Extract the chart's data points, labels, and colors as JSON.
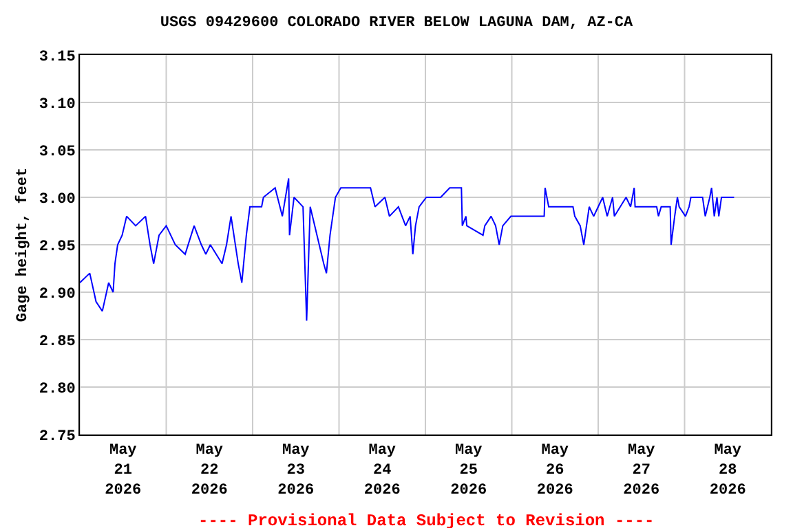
{
  "chart_data": {
    "type": "line",
    "title": "USGS 09429600 COLORADO RIVER BELOW LAGUNA DAM, AZ-CA",
    "ylabel": "Gage height, feet",
    "annotations": [
      "---- Provisional Data Subject to Revision ----"
    ],
    "x": [
      "2026-05-21T00:00",
      "2026-05-21T02:45",
      "2026-05-21T04:30",
      "2026-05-21T06:15",
      "2026-05-21T08:00",
      "2026-05-21T09:15",
      "2026-05-21T09:45",
      "2026-05-21T10:30",
      "2026-05-21T11:45",
      "2026-05-21T13:00",
      "2026-05-21T15:30",
      "2026-05-21T18:15",
      "2026-05-21T19:30",
      "2026-05-21T20:30",
      "2026-05-21T22:00",
      "2026-05-22T00:00",
      "2026-05-22T02:30",
      "2026-05-22T05:15",
      "2026-05-22T07:45",
      "2026-05-22T09:45",
      "2026-05-22T11:00",
      "2026-05-22T12:15",
      "2026-05-22T15:30",
      "2026-05-22T16:45",
      "2026-05-22T18:00",
      "2026-05-22T20:00",
      "2026-05-22T21:00",
      "2026-05-22T22:15",
      "2026-05-22T23:15",
      "2026-05-23T02:30",
      "2026-05-23T03:00",
      "2026-05-23T06:15",
      "2026-05-23T08:15",
      "2026-05-23T10:00",
      "2026-05-23T10:15",
      "2026-05-23T11:30",
      "2026-05-23T14:00",
      "2026-05-23T15:00",
      "2026-05-23T16:00",
      "2026-05-23T19:45",
      "2026-05-23T20:30",
      "2026-05-23T21:30",
      "2026-05-23T23:00",
      "2026-05-24T00:30",
      "2026-05-24T08:45",
      "2026-05-24T10:00",
      "2026-05-24T12:45",
      "2026-05-24T14:00",
      "2026-05-24T16:30",
      "2026-05-24T18:30",
      "2026-05-24T19:45",
      "2026-05-24T20:30",
      "2026-05-24T21:15",
      "2026-05-24T22:15",
      "2026-05-25T00:15",
      "2026-05-25T04:15",
      "2026-05-25T06:45",
      "2026-05-25T10:00",
      "2026-05-25T10:15",
      "2026-05-25T11:15",
      "2026-05-25T11:30",
      "2026-05-25T16:00",
      "2026-05-25T16:30",
      "2026-05-25T18:15",
      "2026-05-25T19:30",
      "2026-05-25T20:30",
      "2026-05-25T21:30",
      "2026-05-25T23:45",
      "2026-05-26T09:00",
      "2026-05-26T09:15",
      "2026-05-26T10:15",
      "2026-05-26T17:00",
      "2026-05-26T17:30",
      "2026-05-26T19:00",
      "2026-05-26T19:30",
      "2026-05-26T20:00",
      "2026-05-26T20:45",
      "2026-05-26T21:30",
      "2026-05-26T22:45",
      "2026-05-27T00:00",
      "2026-05-27T01:15",
      "2026-05-27T02:30",
      "2026-05-27T04:00",
      "2026-05-27T04:30",
      "2026-05-27T07:45",
      "2026-05-27T09:00",
      "2026-05-27T10:00",
      "2026-05-27T10:15",
      "2026-05-27T16:15",
      "2026-05-27T16:45",
      "2026-05-27T17:30",
      "2026-05-27T20:00",
      "2026-05-27T20:15",
      "2026-05-27T21:15",
      "2026-05-27T22:00",
      "2026-05-27T22:30",
      "2026-05-28T00:15",
      "2026-05-28T01:15",
      "2026-05-28T01:45",
      "2026-05-28T05:00",
      "2026-05-28T05:45",
      "2026-05-28T07:00",
      "2026-05-28T07:30",
      "2026-05-28T08:15",
      "2026-05-28T09:00",
      "2026-05-28T09:30",
      "2026-05-28T10:15",
      "2026-05-28T13:45"
    ],
    "series": [
      {
        "color": "#0000ff",
        "values": [
          2.91,
          2.92,
          2.89,
          2.88,
          2.91,
          2.9,
          2.93,
          2.95,
          2.96,
          2.98,
          2.97,
          2.98,
          2.95,
          2.93,
          2.96,
          2.97,
          2.95,
          2.94,
          2.97,
          2.95,
          2.94,
          2.95,
          2.93,
          2.95,
          2.98,
          2.93,
          2.91,
          2.96,
          2.99,
          2.99,
          3.0,
          3.01,
          2.98,
          3.02,
          2.96,
          3.0,
          2.99,
          2.87,
          2.99,
          2.93,
          2.92,
          2.96,
          3.0,
          3.01,
          3.01,
          2.99,
          3.0,
          2.98,
          2.99,
          2.97,
          2.98,
          2.94,
          2.97,
          2.99,
          3.0,
          3.0,
          3.01,
          3.01,
          2.97,
          2.98,
          2.97,
          2.96,
          2.97,
          2.98,
          2.97,
          2.95,
          2.97,
          2.98,
          2.98,
          3.01,
          2.99,
          2.99,
          2.98,
          2.97,
          2.96,
          2.95,
          2.97,
          2.99,
          2.98,
          2.99,
          3.0,
          2.98,
          3.0,
          2.98,
          3.0,
          2.99,
          3.01,
          2.99,
          2.99,
          2.98,
          2.99,
          2.99,
          2.95,
          2.98,
          3.0,
          2.99,
          2.98,
          2.99,
          3.0,
          3.0,
          2.98,
          3.0,
          3.01,
          2.98,
          3.0,
          2.98,
          3.0,
          3.0
        ]
      }
    ],
    "xlim": [
      "2026-05-21T00:00",
      "2026-05-29T00:00"
    ],
    "xticks": [
      {
        "value": "2026-05-21T00:00",
        "label": null
      },
      {
        "value": "2026-05-21T12:00",
        "label": "May\n21\n2026"
      },
      {
        "value": "2026-05-22T00:00",
        "label": null
      },
      {
        "value": "2026-05-22T12:00",
        "label": "May\n22\n2026"
      },
      {
        "value": "2026-05-23T00:00",
        "label": null
      },
      {
        "value": "2026-05-23T12:00",
        "label": "May\n23\n2026"
      },
      {
        "value": "2026-05-24T00:00",
        "label": null
      },
      {
        "value": "2026-05-24T12:00",
        "label": "May\n24\n2026"
      },
      {
        "value": "2026-05-25T00:00",
        "label": null
      },
      {
        "value": "2026-05-25T12:00",
        "label": "May\n25\n2026"
      },
      {
        "value": "2026-05-26T00:00",
        "label": null
      },
      {
        "value": "2026-05-26T12:00",
        "label": "May\n26\n2026"
      },
      {
        "value": "2026-05-27T00:00",
        "label": null
      },
      {
        "value": "2026-05-27T12:00",
        "label": "May\n27\n2026"
      },
      {
        "value": "2026-05-28T00:00",
        "label": null
      },
      {
        "value": "2026-05-28T12:00",
        "label": "May\n28\n2026"
      },
      {
        "value": "2026-05-29T00:00",
        "label": null
      }
    ],
    "ylim": [
      2.75,
      3.15
    ],
    "yticks": [
      2.75,
      {
        "value": 2.8,
        "label": "2.80"
      },
      2.85,
      {
        "value": 2.9,
        "label": "2.90"
      },
      2.95,
      {
        "value": 3.0,
        "label": "3.00"
      },
      3.05,
      {
        "value": 3.1,
        "label": "3.10"
      },
      3.15
    ],
    "grid": true
  }
}
